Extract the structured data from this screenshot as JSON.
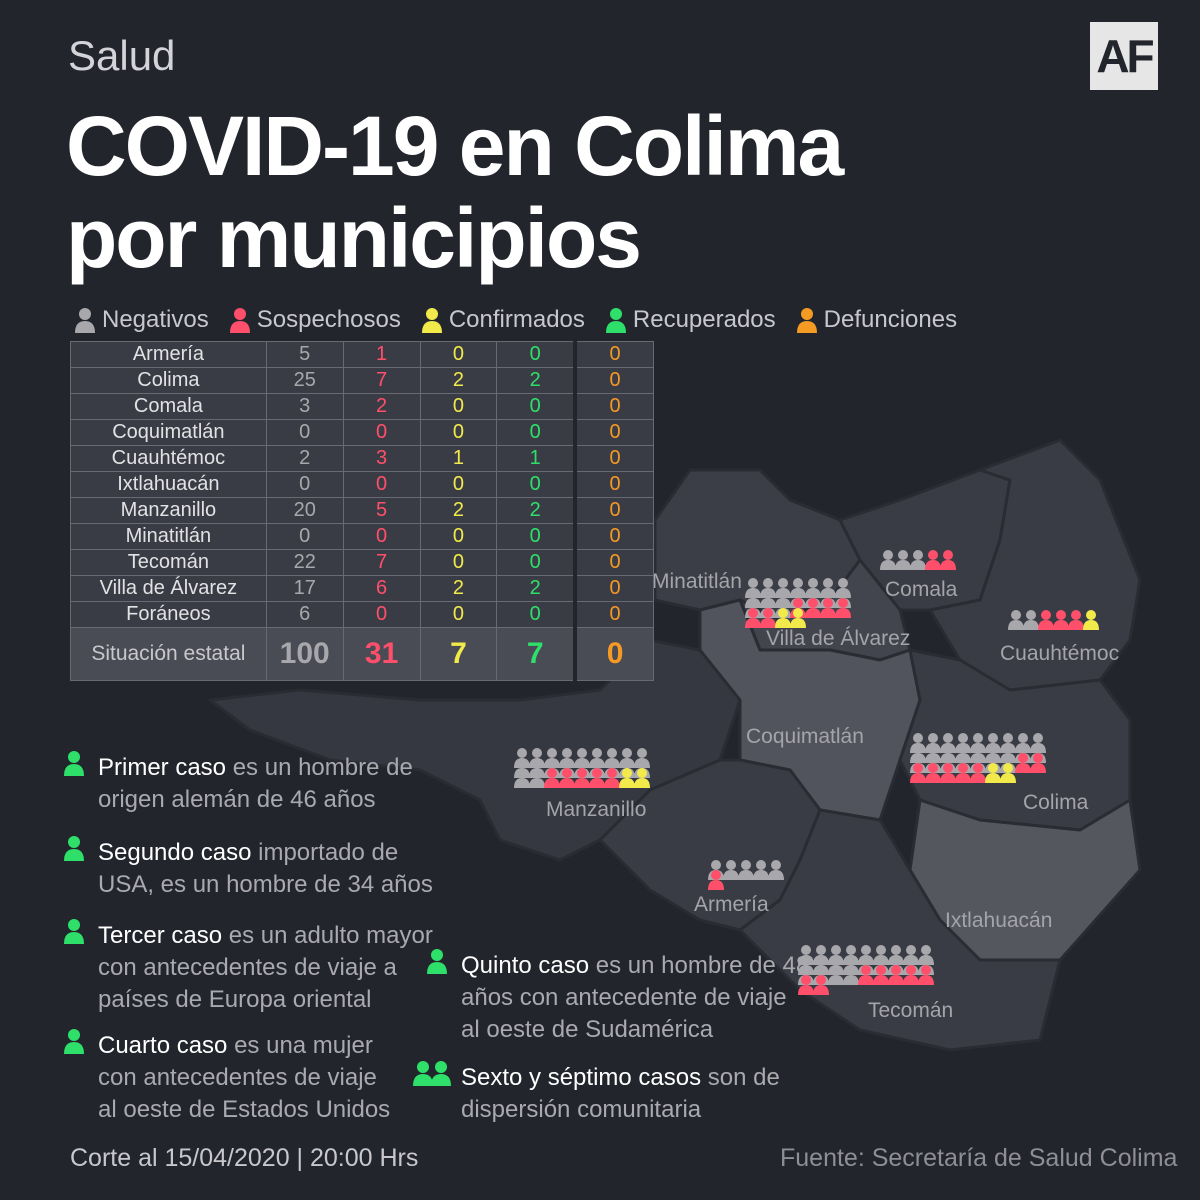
{
  "section": "Salud",
  "logo": "AF",
  "title_line1": "COVID-19 en Colima",
  "title_line2": "por municipios",
  "legend": [
    "Negativos",
    "Sospechosos",
    "Confirmados",
    "Recuperados",
    "Defunciones"
  ],
  "colors": {
    "negativos": "#a8a8ac",
    "sospechosos": "#ff4f6a",
    "confirmados": "#f2ea4a",
    "recuperados": "#2ee06a",
    "defunciones": "#f59a23"
  },
  "rows": [
    {
      "name": "Armería",
      "neg": "5",
      "sos": "1",
      "con": "0",
      "rec": "0",
      "def": "0"
    },
    {
      "name": "Colima",
      "neg": "25",
      "sos": "7",
      "con": "2",
      "rec": "2",
      "def": "0"
    },
    {
      "name": "Comala",
      "neg": "3",
      "sos": "2",
      "con": "0",
      "rec": "0",
      "def": "0"
    },
    {
      "name": "Coquimatlán",
      "neg": "0",
      "sos": "0",
      "con": "0",
      "rec": "0",
      "def": "0"
    },
    {
      "name": "Cuauhtémoc",
      "neg": "2",
      "sos": "3",
      "con": "1",
      "rec": "1",
      "def": "0"
    },
    {
      "name": "Ixtlahuacán",
      "neg": "0",
      "sos": "0",
      "con": "0",
      "rec": "0",
      "def": "0"
    },
    {
      "name": "Manzanillo",
      "neg": "20",
      "sos": "5",
      "con": "2",
      "rec": "2",
      "def": "0"
    },
    {
      "name": "Minatitlán",
      "neg": "0",
      "sos": "0",
      "con": "0",
      "rec": "0",
      "def": "0"
    },
    {
      "name": "Tecomán",
      "neg": "22",
      "sos": "7",
      "con": "0",
      "rec": "0",
      "def": "0"
    },
    {
      "name": "Villa de Álvarez",
      "neg": "17",
      "sos": "6",
      "con": "2",
      "rec": "2",
      "def": "0"
    },
    {
      "name": "Foráneos",
      "neg": "6",
      "sos": "0",
      "con": "0",
      "rec": "0",
      "def": "0"
    }
  ],
  "total": {
    "name": "Situación estatal",
    "neg": "100",
    "sos": "31",
    "con": "7",
    "rec": "7",
    "def": "0"
  },
  "map_labels": {
    "minatitlan": "Minatitlán",
    "comala": "Comala",
    "villa": "Villa de Álvarez",
    "cuauhtemoc": "Cuauhtémoc",
    "coquimatlan": "Coquimatlán",
    "manzanillo": "Manzanillo",
    "colima": "Colima",
    "armeria": "Armería",
    "ixtlahuacan": "Ixtlahuacán",
    "tecoman": "Tecomán"
  },
  "map_icons": {
    "comala": {
      "neg": 3,
      "sos": 2,
      "con": 0
    },
    "villa": {
      "neg": 17,
      "sos": 6,
      "con": 2
    },
    "cuauhtemoc": {
      "neg": 2,
      "sos": 3,
      "con": 1
    },
    "manzanillo": {
      "neg": 20,
      "sos": 5,
      "con": 2
    },
    "colima": {
      "neg": 25,
      "sos": 7,
      "con": 2
    },
    "armeria": {
      "neg": 5,
      "sos": 1,
      "con": 0
    },
    "tecoman": {
      "neg": 22,
      "sos": 7,
      "con": 0
    }
  },
  "notes": {
    "n1_hl": "Primer caso",
    "n1_a": " es un hombre de",
    "n1_b": "origen alemán de 46 años",
    "n2_hl": "Segundo caso",
    "n2_a": " importado de",
    "n2_b": "USA, es un hombre de 34 años",
    "n3_hl": "Tercer  caso",
    "n3_a": " es un adulto mayor",
    "n3_b": "con antecedentes de viaje a",
    "n3_c": "países de Europa oriental",
    "n4_hl": "Cuarto  caso",
    "n4_a": " es una mujer",
    "n4_b": "con antecedentes de viaje",
    "n4_c": "al oeste de Estados Unidos",
    "n5_hl": "Quinto caso",
    "n5_a": " es un hombre de 48",
    "n5_b": "años con antecedente de viaje",
    "n5_c": "al oeste de Sudamérica",
    "n6_hl": "Sexto y séptimo casos",
    "n6_a": " son de",
    "n6_b": "dispersión comunitaria"
  },
  "footer_left": "Corte al 15/04/2020 | 20:00 Hrs",
  "footer_right": "Fuente: Secretaría de Salud Colima"
}
